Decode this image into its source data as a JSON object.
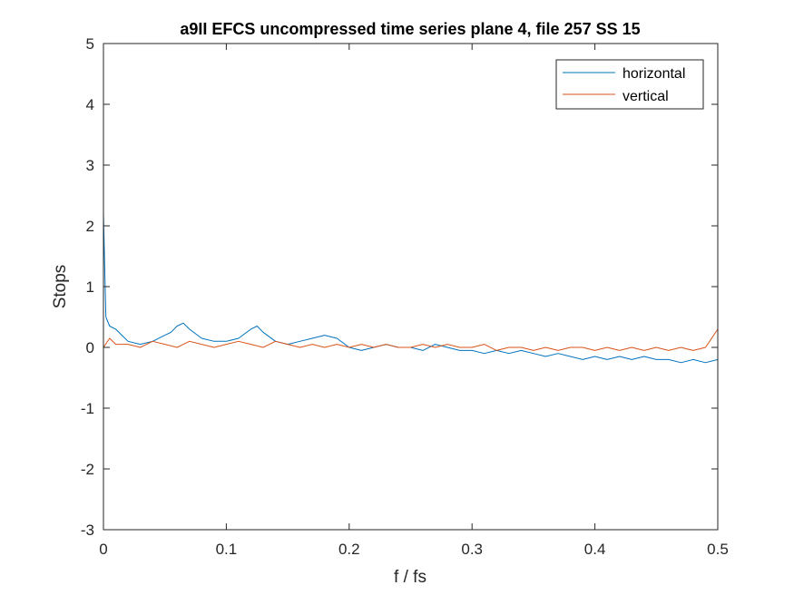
{
  "chart_data": {
    "type": "line",
    "title": "a9II EFCS uncompressed time series plane 4, file 257 SS 15",
    "xlabel": "f / fs",
    "ylabel": "Stops",
    "xlim": [
      0,
      0.5
    ],
    "ylim": [
      -3,
      5
    ],
    "xticks": [
      0,
      0.1,
      0.2,
      0.3,
      0.4,
      0.5
    ],
    "xtick_labels": [
      "0",
      "0.1",
      "0.2",
      "0.3",
      "0.4",
      "0.5"
    ],
    "yticks": [
      -3,
      -2,
      -1,
      0,
      1,
      2,
      3,
      4,
      5
    ],
    "ytick_labels": [
      "-3",
      "-2",
      "-1",
      "0",
      "1",
      "2",
      "3",
      "4",
      "5"
    ],
    "grid": false,
    "legend_position": "top-right",
    "series": [
      {
        "name": "horizontal",
        "color": "#0072BD",
        "x": [
          0,
          0.002,
          0.005,
          0.01,
          0.015,
          0.02,
          0.03,
          0.04,
          0.05,
          0.055,
          0.06,
          0.065,
          0.07,
          0.08,
          0.09,
          0.1,
          0.11,
          0.12,
          0.125,
          0.13,
          0.14,
          0.15,
          0.16,
          0.17,
          0.18,
          0.19,
          0.2,
          0.21,
          0.22,
          0.23,
          0.24,
          0.25,
          0.26,
          0.27,
          0.28,
          0.29,
          0.3,
          0.31,
          0.32,
          0.33,
          0.34,
          0.35,
          0.36,
          0.37,
          0.38,
          0.39,
          0.4,
          0.41,
          0.42,
          0.43,
          0.44,
          0.45,
          0.46,
          0.47,
          0.48,
          0.49,
          0.5
        ],
        "y": [
          2.2,
          0.5,
          0.35,
          0.3,
          0.2,
          0.1,
          0.05,
          0.1,
          0.2,
          0.25,
          0.35,
          0.4,
          0.3,
          0.15,
          0.1,
          0.1,
          0.15,
          0.3,
          0.35,
          0.25,
          0.1,
          0.05,
          0.1,
          0.15,
          0.2,
          0.15,
          0.0,
          -0.05,
          0.0,
          0.05,
          0.0,
          0.0,
          -0.05,
          0.05,
          0.0,
          -0.05,
          -0.05,
          -0.1,
          -0.05,
          -0.1,
          -0.05,
          -0.1,
          -0.15,
          -0.1,
          -0.15,
          -0.2,
          -0.15,
          -0.2,
          -0.15,
          -0.2,
          -0.15,
          -0.2,
          -0.2,
          -0.25,
          -0.2,
          -0.25,
          -0.2
        ]
      },
      {
        "name": "vertical",
        "color": "#D95319",
        "x": [
          0,
          0.005,
          0.01,
          0.02,
          0.03,
          0.04,
          0.05,
          0.06,
          0.07,
          0.08,
          0.09,
          0.1,
          0.11,
          0.12,
          0.13,
          0.14,
          0.15,
          0.16,
          0.17,
          0.18,
          0.19,
          0.2,
          0.21,
          0.22,
          0.23,
          0.24,
          0.25,
          0.26,
          0.27,
          0.28,
          0.29,
          0.3,
          0.31,
          0.32,
          0.33,
          0.34,
          0.35,
          0.36,
          0.37,
          0.38,
          0.39,
          0.4,
          0.41,
          0.42,
          0.43,
          0.44,
          0.45,
          0.46,
          0.47,
          0.48,
          0.49,
          0.5
        ],
        "y": [
          0.0,
          0.15,
          0.05,
          0.05,
          0.0,
          0.1,
          0.05,
          0.0,
          0.1,
          0.05,
          0.0,
          0.05,
          0.1,
          0.05,
          0.0,
          0.1,
          0.05,
          0.0,
          0.05,
          0.0,
          0.05,
          0.0,
          0.05,
          0.0,
          0.05,
          0.0,
          0.0,
          0.05,
          0.0,
          0.05,
          0.0,
          0.0,
          0.05,
          -0.05,
          0.0,
          0.0,
          -0.05,
          0.0,
          -0.05,
          0.0,
          0.0,
          -0.05,
          0.0,
          -0.05,
          0.0,
          -0.05,
          0.0,
          -0.05,
          0.0,
          -0.05,
          0.0,
          0.3
        ]
      }
    ]
  }
}
